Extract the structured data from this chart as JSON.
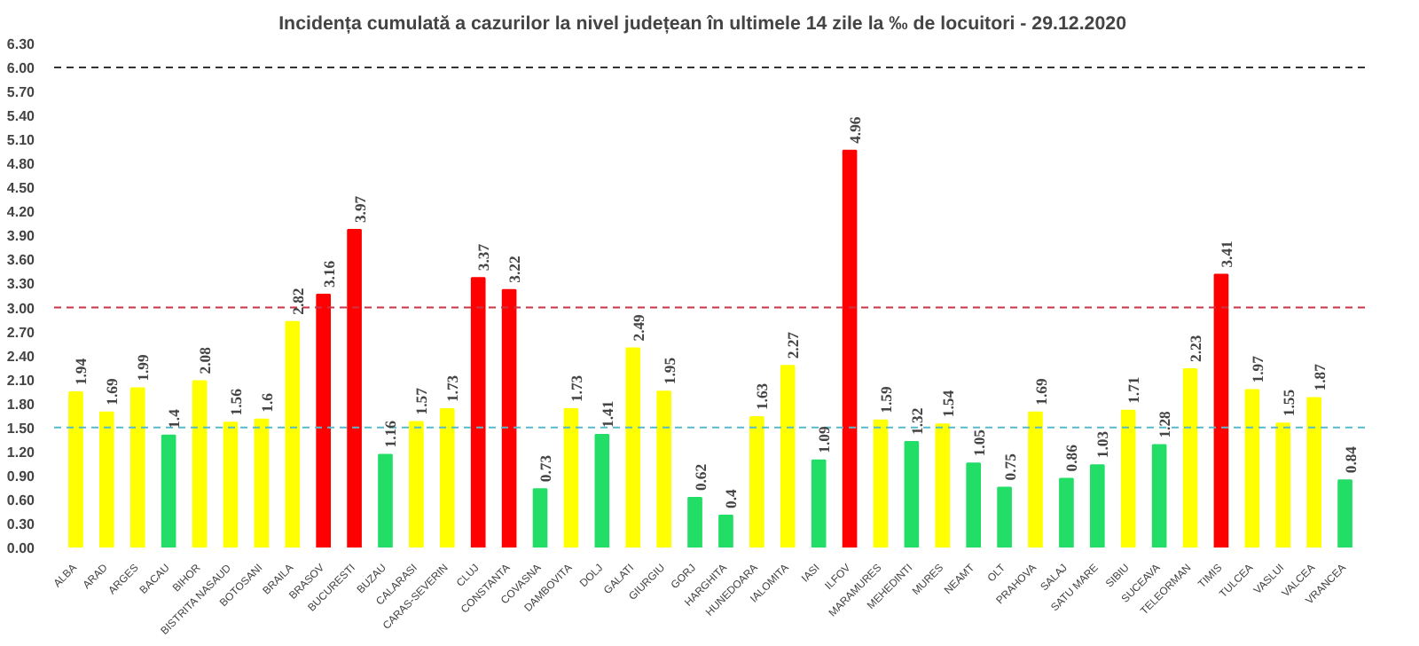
{
  "chart_data": {
    "type": "bar",
    "title": "Incidența cumulată a cazurilor la nivel județean în ultimele 14 zile   la ‰ de locuitori  - 29.12.2020",
    "categories": [
      "ALBA",
      "ARAD",
      "ARGES",
      "BACAU",
      "BIHOR",
      "BISTRITA NASAUD",
      "BOTOSANI",
      "BRAILA",
      "BRASOV",
      "BUCURESTI",
      "BUZAU",
      "CALARASI",
      "CARAS-SEVERIN",
      "CLUJ",
      "CONSTANTA",
      "COVASNA",
      "DAMBOVITA",
      "DOLJ",
      "GALATI",
      "GIURGIU",
      "GORJ",
      "HARGHITA",
      "HUNEDOARA",
      "IALOMITA",
      "IASI",
      "ILFOV",
      "MARAMURES",
      "MEHEDINTI",
      "MURES",
      "NEAMT",
      "OLT",
      "PRAHOVA",
      "SALAJ",
      "SATU MARE",
      "SIBIU",
      "SUCEAVA",
      "TELEORMAN",
      "TIMIS",
      "TULCEA",
      "VASLUI",
      "VALCEA",
      "VRANCEA"
    ],
    "values": [
      1.94,
      1.69,
      1.99,
      1.4,
      2.08,
      1.56,
      1.6,
      2.82,
      3.16,
      3.97,
      1.16,
      1.57,
      1.73,
      3.37,
      3.22,
      0.73,
      1.73,
      1.41,
      2.49,
      1.95,
      0.62,
      0.4,
      1.63,
      2.27,
      1.09,
      4.96,
      1.59,
      1.32,
      1.54,
      1.05,
      0.75,
      1.69,
      0.86,
      1.03,
      1.71,
      1.28,
      2.23,
      3.41,
      1.97,
      1.55,
      1.87,
      0.84
    ],
    "colors": [
      "#ffff00",
      "#ffff00",
      "#ffff00",
      "#22dd66",
      "#ffff00",
      "#ffff00",
      "#ffff00",
      "#ffff00",
      "#ff0000",
      "#ff0000",
      "#22dd66",
      "#ffff00",
      "#ffff00",
      "#ff0000",
      "#ff0000",
      "#22dd66",
      "#ffff00",
      "#22dd66",
      "#ffff00",
      "#ffff00",
      "#22dd66",
      "#22dd66",
      "#ffff00",
      "#ffff00",
      "#22dd66",
      "#ff0000",
      "#ffff00",
      "#22dd66",
      "#ffff00",
      "#22dd66",
      "#22dd66",
      "#ffff00",
      "#22dd66",
      "#22dd66",
      "#ffff00",
      "#22dd66",
      "#ffff00",
      "#ff0000",
      "#ffff00",
      "#ffff00",
      "#ffff00",
      "#22dd66"
    ],
    "ylim": [
      0,
      6.3
    ],
    "yticks": [
      {
        "value": 0,
        "label": "0.00"
      },
      {
        "value": 0.3,
        "label": "0.30"
      },
      {
        "value": 0.6,
        "label": "0.60"
      },
      {
        "value": 0.9,
        "label": "0.90"
      },
      {
        "value": 1.2,
        "label": "1.20"
      },
      {
        "value": 1.5,
        "label": "1.50"
      },
      {
        "value": 1.8,
        "label": "1.80"
      },
      {
        "value": 2.1,
        "label": "2.10"
      },
      {
        "value": 2.4,
        "label": "2.40"
      },
      {
        "value": 2.7,
        "label": "2.70"
      },
      {
        "value": 3,
        "label": "3.00"
      },
      {
        "value": 3.3,
        "label": "3.30"
      },
      {
        "value": 3.6,
        "label": "3.60"
      },
      {
        "value": 3.9,
        "label": "3.90"
      },
      {
        "value": 4.2,
        "label": "4.20"
      },
      {
        "value": 4.5,
        "label": "4.50"
      },
      {
        "value": 4.8,
        "label": "4.80"
      },
      {
        "value": 5.1,
        "label": "5.10"
      },
      {
        "value": 5.4,
        "label": "5.40"
      },
      {
        "value": 5.7,
        "label": "5.70"
      },
      {
        "value": 6,
        "label": "6.00"
      },
      {
        "value": 6.3,
        "label": "6.30"
      }
    ],
    "ref_lines": [
      {
        "axis": "y",
        "value": 6,
        "color": "#333333",
        "line_style": "dashed"
      },
      {
        "axis": "y",
        "value": 3,
        "color": "#cc3344",
        "line_style": "dashed"
      },
      {
        "axis": "y",
        "value": 1.5,
        "color": "#55bbcc",
        "line_style": "dashed"
      }
    ],
    "data_labels": true,
    "grid": false
  }
}
